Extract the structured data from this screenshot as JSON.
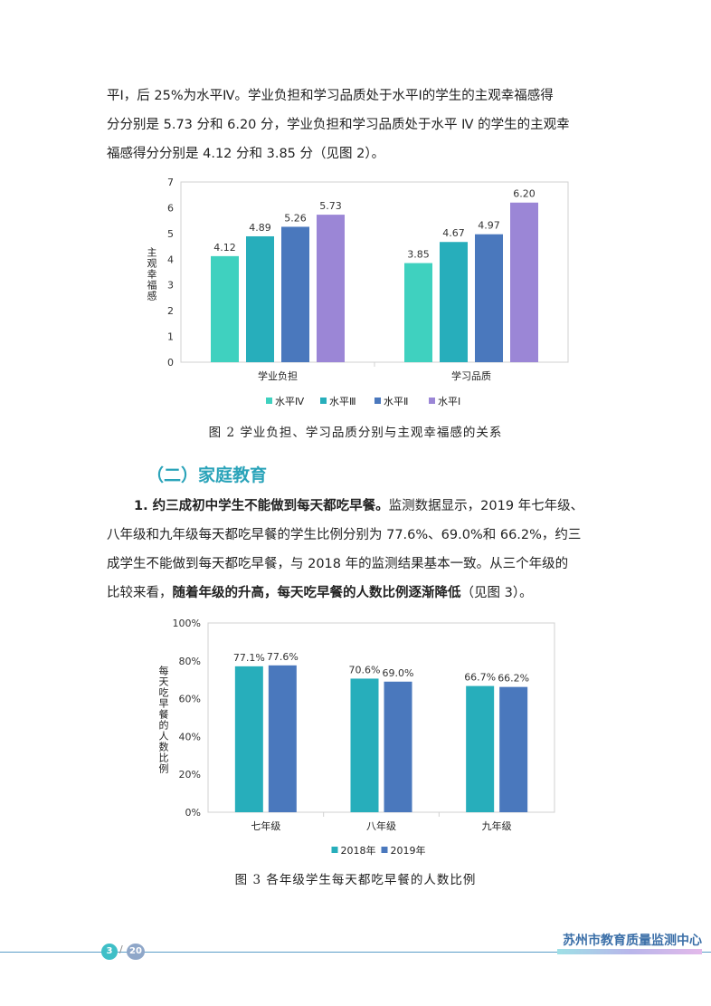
{
  "paragraph1": {
    "line1": "平Ⅰ，后 25%为水平Ⅳ。学业负担和学习品质处于水平Ⅰ的学生的主观幸福感得",
    "line2": "分分别是 5.73 分和 6.20 分，学业负担和学习品质处于水平 Ⅳ 的学生的主观幸",
    "line3": "福感得分分别是 4.12 分和 3.85 分（见图 2）。"
  },
  "figure2_caption": "图 2  学业负担、学习品质分别与主观幸福感的关系",
  "section_title": "（二）家庭教育",
  "paragraph2": {
    "bold_lead": "1. 约三成初中学生不能做到每天都吃早餐。",
    "line1_rest": "监测数据显示，2019 年七年级、",
    "line2": "八年级和九年级每天都吃早餐的学生比例分别为 77.6%、69.0%和 66.2%，约三",
    "line3": "成学生不能做到每天都吃早餐，与 2018 年的监测结果基本一致。从三个年级的",
    "line4_start": "比较来看，",
    "line4_bold": "随着年级的升高，每天吃早餐的人数比例逐渐降低",
    "line4_end": "（见图 3）。"
  },
  "figure3_caption": "图 3  各年级学生每天都吃早餐的人数比例",
  "footer": {
    "page_current": "3",
    "page_total": "20",
    "page_sep": "/",
    "org": "苏州市教育质量监测中心"
  },
  "chart_data": [
    {
      "type": "bar",
      "ylabel": "主观幸福感",
      "ylim": [
        0,
        7
      ],
      "yticks": [
        "0",
        "1",
        "2",
        "3",
        "4",
        "5",
        "6",
        "7"
      ],
      "categories": [
        "学业负担",
        "学习品质"
      ],
      "series": [
        {
          "name": "水平Ⅳ",
          "color": "#3fd1bf",
          "values": [
            4.12,
            3.85
          ],
          "labels": [
            "4.12",
            "3.85"
          ]
        },
        {
          "name": "水平Ⅲ",
          "color": "#27aebb",
          "values": [
            4.89,
            4.67
          ],
          "labels": [
            "4.89",
            "4.67"
          ]
        },
        {
          "name": "水平Ⅱ",
          "color": "#4a78bd",
          "values": [
            5.26,
            4.97
          ],
          "labels": [
            "5.26",
            "4.97"
          ]
        },
        {
          "name": "水平Ⅰ",
          "color": "#9b86d6",
          "values": [
            5.73,
            6.2
          ],
          "labels": [
            "5.73",
            "6.20"
          ]
        }
      ],
      "legend": "bottom"
    },
    {
      "type": "bar",
      "ylabel": "每天吃早餐的人数比例",
      "ylim": [
        0,
        100
      ],
      "yticks": [
        "0%",
        "20%",
        "40%",
        "60%",
        "80%",
        "100%"
      ],
      "categories": [
        "七年级",
        "八年级",
        "九年级"
      ],
      "series": [
        {
          "name": "2018年",
          "color": "#27aebb",
          "values": [
            77.1,
            70.6,
            66.7
          ],
          "labels": [
            "77.1%",
            "70.6%",
            "66.7%"
          ]
        },
        {
          "name": "2019年",
          "color": "#4a78bd",
          "values": [
            77.6,
            69.0,
            66.2
          ],
          "labels": [
            "77.6%",
            "69.0%",
            "66.2%"
          ]
        }
      ],
      "legend": "bottom"
    }
  ]
}
